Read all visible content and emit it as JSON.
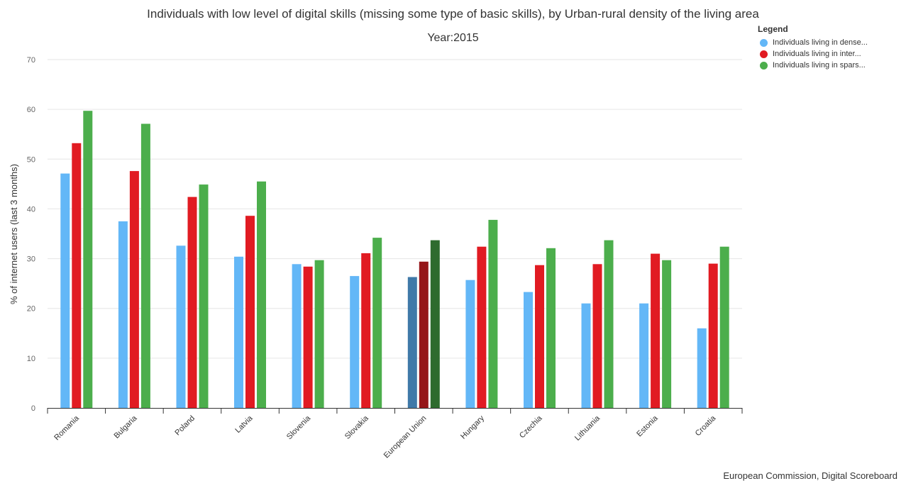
{
  "chart_data": {
    "type": "bar",
    "title": "Individuals with low level of digital skills (missing some type of basic skills), by Urban-rural density of the living area",
    "subtitle": "Year:2015",
    "xlabel": "",
    "ylabel": "% of internet users (last 3 months)",
    "ylim": [
      0,
      70
    ],
    "yticks": [
      0,
      10,
      20,
      30,
      40,
      50,
      60,
      70
    ],
    "grid": true,
    "legend_title": "Legend",
    "legend_position": "top-right",
    "categories": [
      "Romania",
      "Bulgaria",
      "Poland",
      "Latvia",
      "Slovenia",
      "Slovakia",
      "European Union",
      "Hungary",
      "Czechia",
      "Lithuania",
      "Estonia",
      "Croatia"
    ],
    "highlight_category": "European Union",
    "series": [
      {
        "name": "Individuals living in dense...",
        "color": "#63b7f7",
        "highlight_color": "#3f79a8",
        "values": [
          47.1,
          37.5,
          32.6,
          30.4,
          28.9,
          26.5,
          26.3,
          25.7,
          23.3,
          21.0,
          21.0,
          16.0
        ]
      },
      {
        "name": "Individuals living in inter...",
        "color": "#e11b22",
        "highlight_color": "#951619",
        "values": [
          53.2,
          47.6,
          42.4,
          38.6,
          28.4,
          31.1,
          29.4,
          32.4,
          28.7,
          28.9,
          31.0,
          29.0
        ]
      },
      {
        "name": "Individuals living in spars...",
        "color": "#4cae4c",
        "highlight_color": "#2e6b2e",
        "values": [
          59.7,
          57.1,
          44.9,
          45.5,
          29.7,
          34.2,
          33.7,
          37.8,
          32.1,
          33.7,
          29.7,
          32.4
        ]
      }
    ]
  },
  "credit": "European Commission, Digital Scoreboard"
}
